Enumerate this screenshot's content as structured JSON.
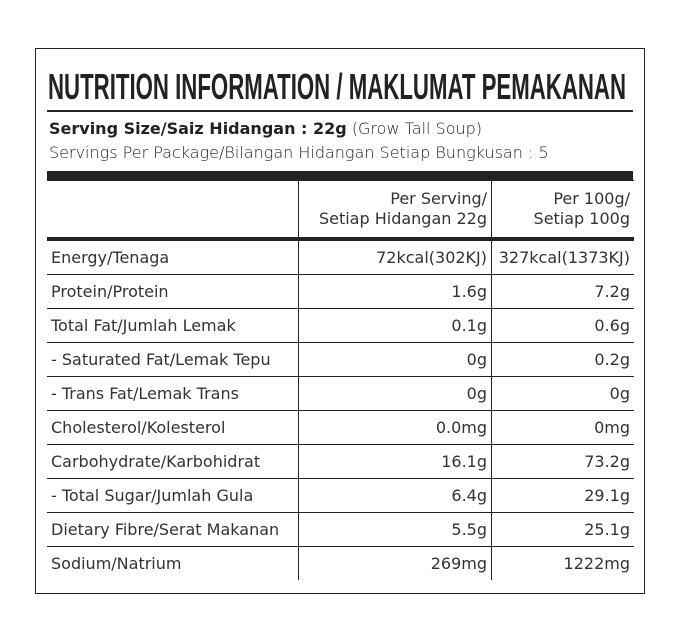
{
  "title": "NUTRITION INFORMATION / MAKLUMAT PEMAKANAN",
  "serving_size": {
    "label": "Serving Size/Saiz Hidangan : 22g",
    "note": "(Grow Tall Soup)"
  },
  "servings_per_package": "Servings Per Package/Bilangan Hidangan Setiap Bungkusan : 5",
  "table": {
    "header": [
      [
        "Per Serving/",
        "Setiap Hidangan 22g"
      ],
      [
        "Per 100g/",
        "Setiap 100g"
      ]
    ],
    "rows": [
      [
        "Energy/Tenaga",
        "72kcal(302KJ)",
        "327kcal(1373KJ)"
      ],
      [
        "Protein/Protein",
        "1.6g",
        "7.2g"
      ],
      [
        "Total Fat/Jumlah Lemak",
        "0.1g",
        "0.6g"
      ],
      [
        "- Saturated Fat/Lemak Tepu",
        "0g",
        "0.2g"
      ],
      [
        "- Trans Fat/Lemak Trans",
        "0g",
        "0g"
      ],
      [
        "Cholesterol/Kolesterol",
        "0.0mg",
        "0mg"
      ],
      [
        "Carbohydrate/Karbohidrat",
        "16.1g",
        "73.2g"
      ],
      [
        "- Total Sugar/Jumlah Gula",
        "6.4g",
        "29.1g"
      ],
      [
        "Dietary Fibre/Serat Makanan",
        "5.5g",
        "25.1g"
      ],
      [
        "Sodium/Natrium",
        "269mg",
        "1222mg"
      ]
    ]
  }
}
